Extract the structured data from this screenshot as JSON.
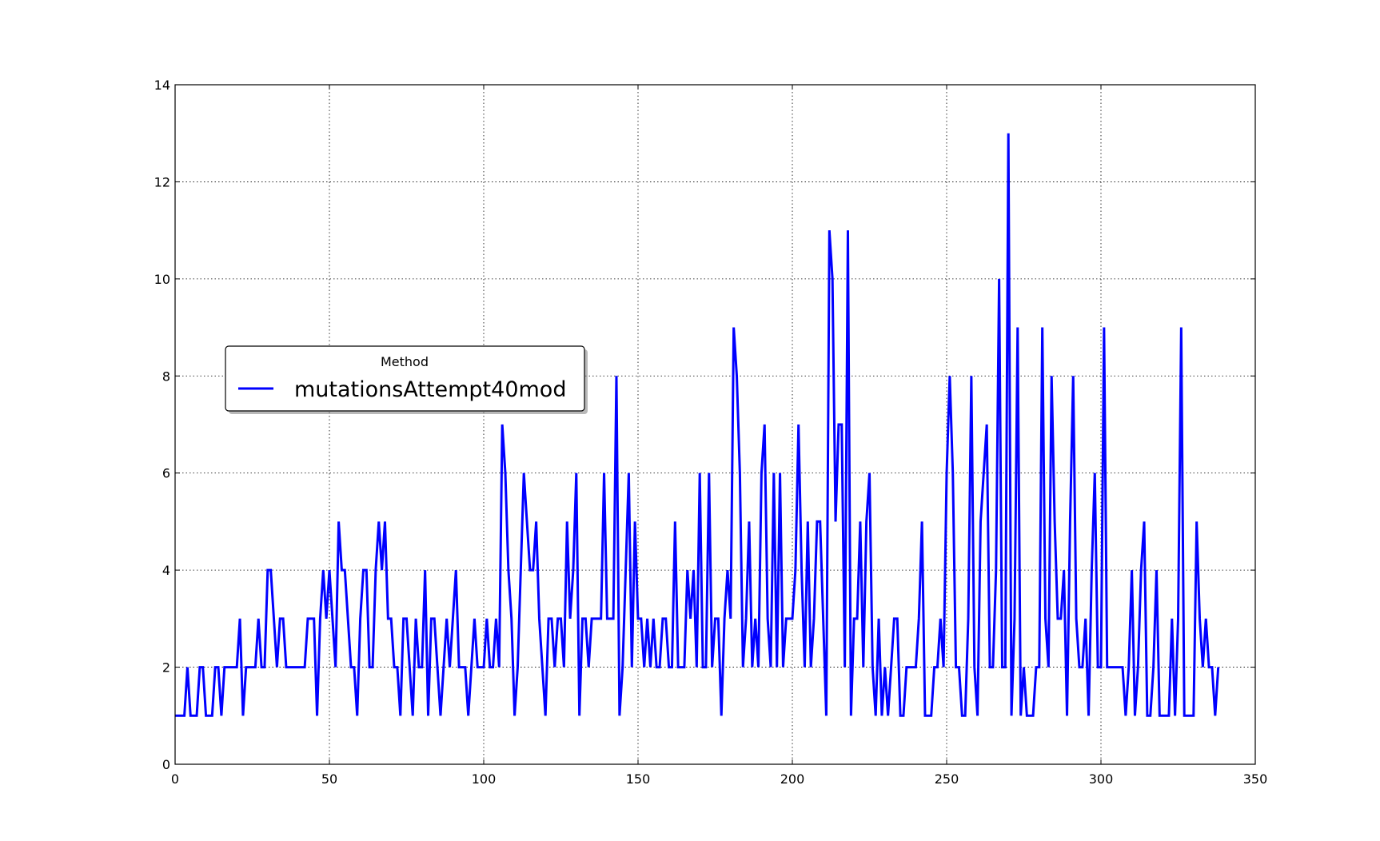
{
  "chart_data": {
    "type": "line",
    "title": "",
    "xlabel": "",
    "ylabel": "",
    "xlim": [
      0,
      350
    ],
    "ylim": [
      0,
      14
    ],
    "xticks": [
      "0",
      "50",
      "100",
      "150",
      "200",
      "250",
      "300",
      "350"
    ],
    "yticks": [
      "0",
      "2",
      "4",
      "6",
      "8",
      "10",
      "12",
      "14"
    ],
    "grid": true,
    "legend": {
      "title": "Method",
      "placement": "center-left"
    },
    "series": [
      {
        "name": "mutationsAttempt40mod",
        "color": "#0000ff",
        "values": [
          1,
          1,
          1,
          1,
          2,
          1,
          1,
          1,
          2,
          2,
          1,
          1,
          1,
          2,
          2,
          1,
          2,
          2,
          2,
          2,
          2,
          3,
          1,
          2,
          2,
          2,
          2,
          3,
          2,
          2,
          4,
          4,
          3,
          2,
          3,
          3,
          2,
          2,
          2,
          2,
          2,
          2,
          2,
          3,
          3,
          3,
          1,
          3,
          4,
          3,
          4,
          3,
          2,
          5,
          4,
          4,
          3,
          2,
          2,
          1,
          3,
          4,
          4,
          2,
          2,
          4,
          5,
          4,
          5,
          3,
          3,
          2,
          2,
          1,
          3,
          3,
          2,
          1,
          3,
          2,
          2,
          4,
          1,
          3,
          3,
          2,
          1,
          2,
          3,
          2,
          3,
          4,
          2,
          2,
          2,
          1,
          2,
          3,
          2,
          2,
          2,
          3,
          2,
          2,
          3,
          2,
          7,
          6,
          4,
          3,
          1,
          2,
          4,
          6,
          5,
          4,
          4,
          5,
          3,
          2,
          1,
          3,
          3,
          2,
          3,
          3,
          2,
          5,
          3,
          4,
          6,
          1,
          3,
          3,
          2,
          3,
          3,
          3,
          3,
          6,
          3,
          3,
          3,
          8,
          1,
          2,
          4,
          6,
          2,
          5,
          3,
          3,
          2,
          3,
          2,
          3,
          2,
          2,
          3,
          3,
          2,
          2,
          5,
          2,
          2,
          2,
          4,
          3,
          4,
          2,
          6,
          2,
          2,
          6,
          2,
          3,
          3,
          1,
          3,
          4,
          3,
          9,
          8,
          6,
          2,
          3,
          5,
          2,
          3,
          2,
          6,
          7,
          3,
          2,
          6,
          2,
          6,
          2,
          3,
          3,
          3,
          4,
          7,
          4,
          2,
          5,
          2,
          3,
          5,
          5,
          3,
          1,
          11,
          10,
          5,
          7,
          7,
          2,
          11,
          1,
          3,
          3,
          5,
          2,
          5,
          6,
          2,
          1,
          3,
          1,
          2,
          1,
          2,
          3,
          3,
          1,
          1,
          2,
          2,
          2,
          2,
          3,
          5,
          1,
          1,
          1,
          2,
          2,
          3,
          2,
          6,
          8,
          6,
          2,
          2,
          1,
          1,
          3,
          8,
          2,
          1,
          5,
          6,
          7,
          2,
          2,
          4,
          10,
          2,
          2,
          13,
          1,
          3,
          9,
          1,
          2,
          1,
          1,
          1,
          2,
          2,
          9,
          3,
          2,
          8,
          5,
          3,
          3,
          4,
          1,
          5,
          8,
          3,
          2,
          2,
          3,
          1,
          4,
          6,
          2,
          2,
          9,
          2,
          2,
          2,
          2,
          2,
          2,
          1,
          2,
          4,
          1,
          2,
          4,
          5,
          1,
          1,
          2,
          4,
          1,
          1,
          1,
          1,
          3,
          1,
          3,
          9,
          1,
          1,
          1,
          1,
          5,
          3,
          2,
          3,
          2,
          2,
          1,
          2
        ]
      }
    ]
  }
}
